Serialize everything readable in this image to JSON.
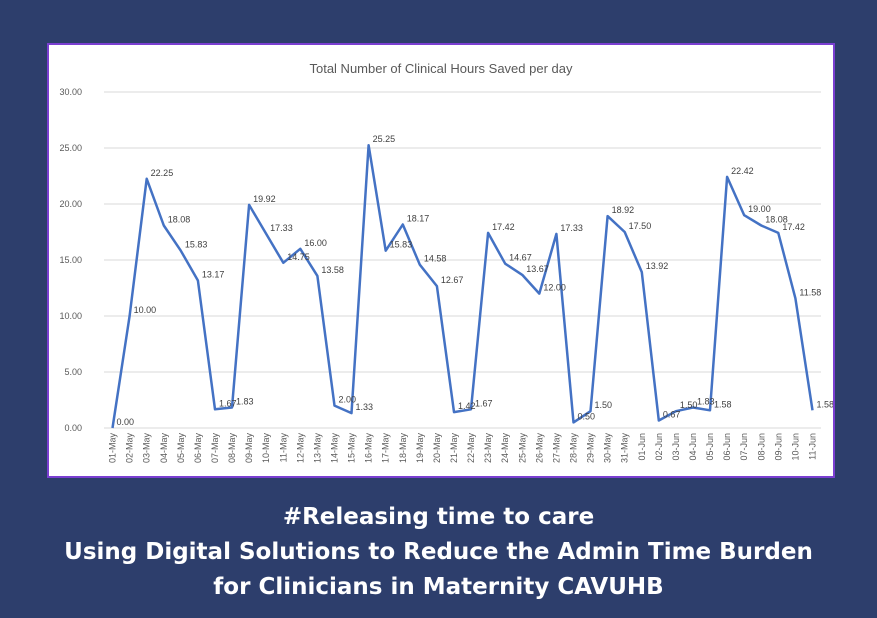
{
  "chart_data": {
    "type": "line",
    "title": "Total Number of Clinical Hours Saved per day",
    "xlabel": "",
    "ylabel": "",
    "ylim": [
      0,
      30
    ],
    "yticks": [
      "0.00",
      "5.00",
      "10.00",
      "15.00",
      "20.00",
      "25.00",
      "30.00"
    ],
    "grid": true,
    "legend": "none",
    "line_color": "#4472c4",
    "categories": [
      "01-May",
      "02-May",
      "03-May",
      "04-May",
      "05-May",
      "06-May",
      "07-May",
      "08-May",
      "09-May",
      "10-May",
      "11-May",
      "12-May",
      "13-May",
      "14-May",
      "15-May",
      "16-May",
      "17-May",
      "18-May",
      "19-May",
      "20-May",
      "21-May",
      "22-May",
      "23-May",
      "24-May",
      "25-May",
      "26-May",
      "27-May",
      "28-May",
      "29-May",
      "30-May",
      "31-May",
      "01-Jun",
      "02-Jun",
      "03-Jun",
      "04-Jun",
      "05-Jun",
      "06-Jun",
      "07-Jun",
      "08-Jun",
      "09-Jun",
      "10-Jun",
      "11-Jun"
    ],
    "values": [
      0.0,
      10.0,
      22.25,
      18.08,
      15.83,
      13.17,
      1.67,
      1.83,
      19.92,
      17.33,
      14.75,
      16.0,
      13.58,
      2.0,
      1.33,
      25.25,
      15.83,
      18.17,
      14.58,
      12.67,
      1.42,
      1.67,
      17.42,
      14.67,
      13.67,
      12.0,
      17.33,
      0.5,
      1.5,
      18.92,
      17.5,
      13.92,
      0.67,
      1.5,
      1.83,
      1.58,
      22.42,
      19.0,
      18.08,
      17.42,
      11.58,
      1.58
    ],
    "data_labels": [
      "0.00",
      "10.00",
      "22.25",
      "18.08",
      "15.83",
      "13.17",
      "1.67",
      "1.83",
      "19.92",
      "17.33",
      "14.75",
      "16.00",
      "13.58",
      "2.00",
      "1.33",
      "25.25",
      "15.83",
      "18.17",
      "14.58",
      "12.67",
      "1.42",
      "1.67",
      "17.42",
      "14.67",
      "13.67",
      "12.00",
      "17.33",
      "0.50",
      "1.50",
      "18.92",
      "17.50",
      "13.92",
      "0.67",
      "1.50",
      "1.83",
      "1.58",
      "22.42",
      "19.00",
      "18.08",
      "17.42",
      "11.58",
      "1.58"
    ]
  },
  "caption": {
    "line1": "#Releasing time to care",
    "line2": "Using Digital Solutions to Reduce the Admin Time Burden",
    "line3": "for Clinicians in Maternity CAVUHB"
  },
  "colors": {
    "background": "#2d3e6c",
    "chart_border": "#7a3fd1",
    "gridline": "#d9d9d9",
    "text": "#595959"
  }
}
